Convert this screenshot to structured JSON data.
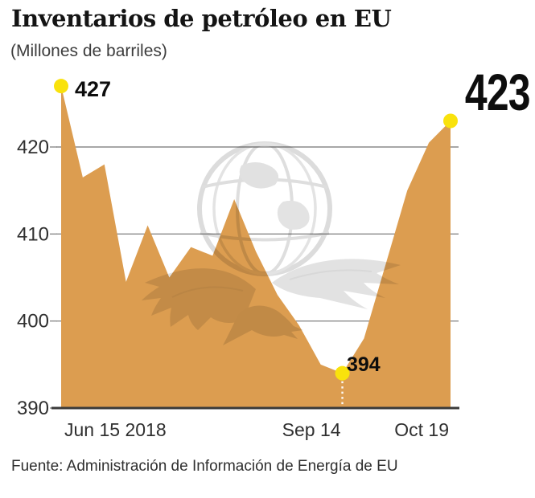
{
  "header": {
    "title": "Inventarios de petróleo en EU",
    "subtitle": "(Millones de barriles)"
  },
  "footer": {
    "source": "Fuente: Administración de Información de Energía de EU"
  },
  "watermark": {
    "icon": "globe-eagle-press-logo",
    "color": "#e2e2e2"
  },
  "chart_data": {
    "type": "area",
    "title": "Inventarios de petróleo en EU",
    "units": "Millones de barriles",
    "x_unit": "weeks (Jun 15 2018 – Oct 19 2018)",
    "values": [
      427,
      416.5,
      418,
      404.5,
      411,
      405,
      408.5,
      407.5,
      414,
      408,
      403,
      399.5,
      395,
      394,
      398,
      406.5,
      415,
      420.5,
      423
    ],
    "xticks": [
      {
        "index": 0,
        "label": "Jun 15 2018"
      },
      {
        "index": 13,
        "label": "Sep 14"
      },
      {
        "index": 18,
        "label": "Oct 19"
      }
    ],
    "yticks": [
      390,
      400,
      410,
      420
    ],
    "ylim": [
      390,
      430
    ],
    "grid": "horizontal",
    "legend": "none",
    "area_color": "#DC9D50",
    "marker_color": "#F9E20C",
    "annotations": [
      {
        "index": 0,
        "value": 427,
        "label": "427",
        "size": "small"
      },
      {
        "index": 13,
        "value": 394,
        "label": "394",
        "size": "small",
        "dashed_guide": true
      },
      {
        "index": 18,
        "value": 423,
        "label": "423",
        "size": "large"
      }
    ]
  }
}
